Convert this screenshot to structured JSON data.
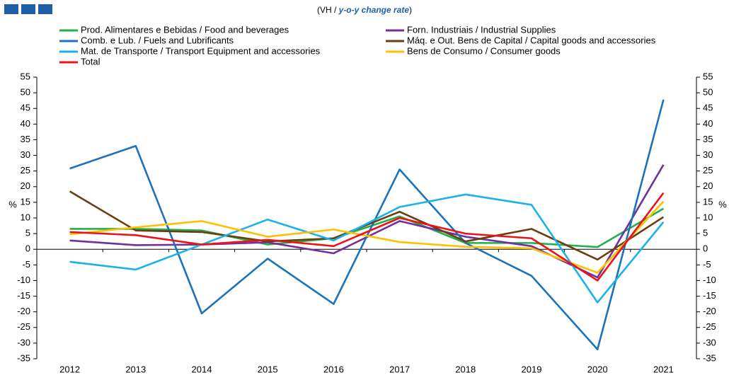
{
  "chart_data": {
    "type": "line",
    "title": [
      "(VH / ",
      "y-o-y change rate",
      ")"
    ],
    "y_label": "%",
    "y2_label": "%",
    "categories": [
      "2012",
      "2013",
      "2014",
      "2015",
      "2016",
      "2017",
      "2018",
      "2019",
      "2020",
      "2021"
    ],
    "series": [
      {
        "name": "Prod. Alimentares e Bebidas / Food and beverages",
        "color": "#22b04b",
        "values": [
          6.5,
          6.5,
          6,
          1.5,
          3.5,
          10.5,
          2,
          2,
          0.7,
          13
        ]
      },
      {
        "name": "Forn. Industriais / Industrial Supplies",
        "color": "#7030a0",
        "values": [
          2.8,
          1.3,
          1.5,
          2.2,
          -1.3,
          9,
          4,
          1,
          -9,
          27
        ]
      },
      {
        "name": "Comb. e Lub. /  Fuels and Lubrificants",
        "color": "#1b72bd",
        "values": [
          25.8,
          33,
          -20.5,
          -3,
          -17.5,
          25.5,
          2,
          -8.5,
          -32,
          47.8
        ]
      },
      {
        "name": "Máq. e Out. Bens de Capital / Capital goods and accessories",
        "color": "#6b3d0f",
        "values": [
          18.5,
          6,
          5.5,
          2.5,
          3.5,
          12,
          2.5,
          6.5,
          -3.3,
          10.3
        ]
      },
      {
        "name": "Mat. de Transporte / Transport Equipment and accessories",
        "color": "#1ab2ea",
        "values": [
          -4,
          -6.5,
          1.5,
          9.5,
          2.8,
          13.5,
          17.5,
          14.2,
          -17,
          8.7
        ]
      },
      {
        "name": "Bens de Consumo / Consumer goods",
        "color": "#ffc000",
        "values": [
          4.8,
          7,
          9,
          4,
          6.3,
          2.3,
          0.8,
          0.3,
          -7.5,
          15.3
        ]
      },
      {
        "name": "Total",
        "color": "#e8141b",
        "values": [
          5.5,
          4.5,
          1.5,
          3,
          1,
          10,
          5,
          3.5,
          -10,
          18
        ]
      }
    ],
    "ylim": [
      -35,
      55
    ],
    "yticks": [
      -35,
      -30,
      -25,
      -20,
      -15,
      -10,
      -5,
      0,
      5,
      10,
      15,
      20,
      25,
      30,
      35,
      40,
      45,
      50,
      55
    ],
    "y2lim": [
      -35,
      55
    ],
    "y2ticks": [
      -35,
      -30,
      -25,
      -20,
      -15,
      -10,
      -5,
      0,
      5,
      10,
      15,
      20,
      25,
      30,
      35,
      40,
      45,
      50,
      55
    ]
  }
}
